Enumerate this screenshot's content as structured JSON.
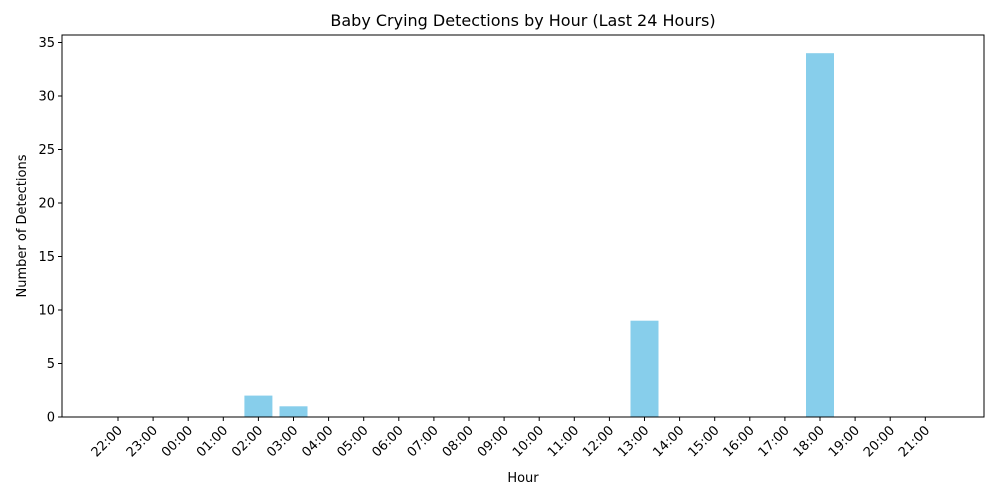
{
  "chart_data": {
    "type": "bar",
    "title": "Baby Crying Detections by Hour (Last 24 Hours)",
    "xlabel": "Hour",
    "ylabel": "Number of Detections",
    "categories": [
      "22:00",
      "23:00",
      "00:00",
      "01:00",
      "02:00",
      "03:00",
      "04:00",
      "05:00",
      "06:00",
      "07:00",
      "08:00",
      "09:00",
      "10:00",
      "11:00",
      "12:00",
      "13:00",
      "14:00",
      "15:00",
      "16:00",
      "17:00",
      "18:00",
      "19:00",
      "20:00",
      "21:00"
    ],
    "values": [
      0,
      0,
      0,
      0,
      2,
      1,
      0,
      0,
      0,
      0,
      0,
      0,
      0,
      0,
      0,
      9,
      0,
      0,
      0,
      0,
      34,
      0,
      0,
      0
    ],
    "ylim": [
      0,
      35.7
    ],
    "yticks": [
      0,
      5,
      10,
      15,
      20,
      25,
      30,
      35
    ],
    "grid": false,
    "bar_color": "#87ceeb"
  }
}
